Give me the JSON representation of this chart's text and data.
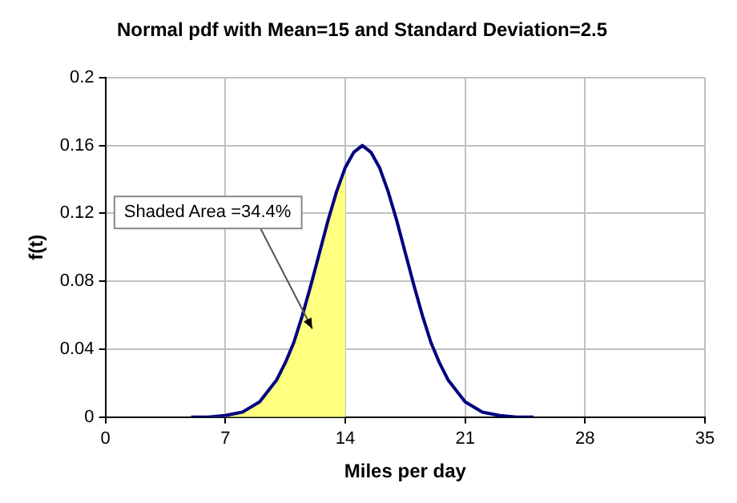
{
  "chart_data": {
    "type": "line",
    "title": "Normal pdf with Mean=15 and Standard Deviation=2.5",
    "xlabel": "Miles per day",
    "ylabel": "f(t)",
    "series": [
      {
        "type": "area",
        "color": "#ffff80",
        "x": [
          5,
          6,
          7,
          8,
          9,
          10,
          10.5,
          11,
          11.5,
          12,
          12.5,
          13,
          13.5,
          14
        ],
        "values": [
          0.0,
          0.0,
          0.001,
          0.003,
          0.009,
          0.022,
          0.032,
          0.044,
          0.06,
          0.078,
          0.097,
          0.116,
          0.133,
          0.147
        ]
      },
      {
        "type": "line",
        "color": "#000080",
        "x": [
          5,
          6,
          7,
          8,
          9,
          10,
          10.5,
          11,
          11.5,
          12,
          12.5,
          13,
          13.5,
          14,
          14.5,
          15,
          15.5,
          16,
          16.5,
          17,
          17.5,
          18,
          18.5,
          19,
          19.5,
          20,
          21,
          22,
          23,
          24,
          25
        ],
        "values": [
          0.0,
          0.0,
          0.001,
          0.003,
          0.009,
          0.022,
          0.032,
          0.044,
          0.06,
          0.078,
          0.097,
          0.116,
          0.133,
          0.147,
          0.156,
          0.16,
          0.156,
          0.147,
          0.133,
          0.116,
          0.097,
          0.078,
          0.06,
          0.044,
          0.032,
          0.022,
          0.009,
          0.003,
          0.001,
          0.0,
          0.0
        ]
      }
    ],
    "xlim": [
      0,
      35
    ],
    "xticks": [
      0,
      7,
      14,
      21,
      28,
      35
    ],
    "ylim": [
      0,
      0.2
    ],
    "yticks": [
      0,
      0.04,
      0.08,
      0.12,
      0.16,
      0.2
    ],
    "grid": true,
    "legend": false,
    "marker": "none",
    "line_style": "solid",
    "annotations": [
      "Shaded Area =34.4%"
    ]
  }
}
